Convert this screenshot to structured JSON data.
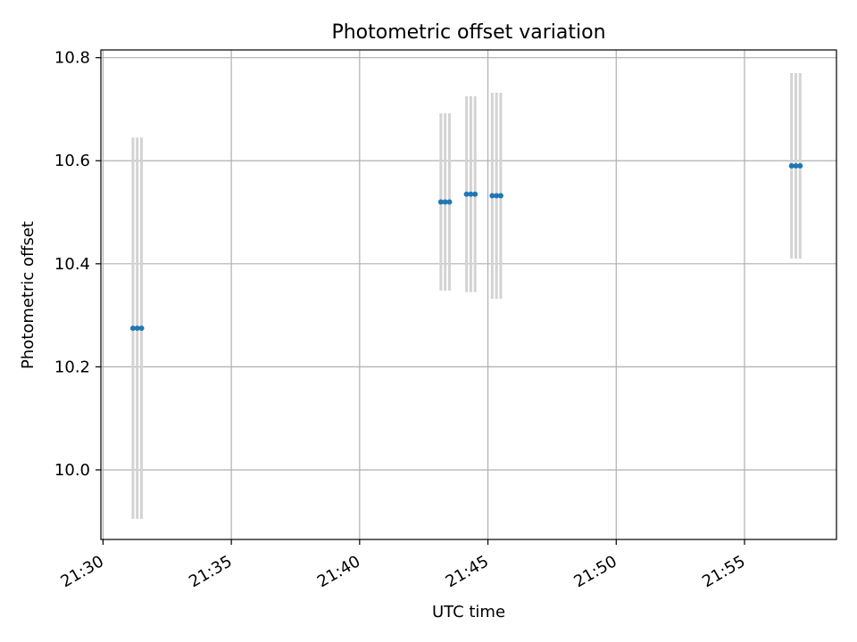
{
  "chart_data": {
    "type": "scatter",
    "title": "Photometric offset variation",
    "xlabel": "UTC time",
    "ylabel": "Photometric offset",
    "x_ticks": [
      "21:30",
      "21:35",
      "21:40",
      "21:45",
      "21:50",
      "21:55"
    ],
    "y_ticks": [
      "10.0",
      "10.2",
      "10.4",
      "10.6",
      "10.8"
    ],
    "xlim": [
      "21:29:55",
      "21:58:35"
    ],
    "ylim": [
      9.865,
      10.815
    ],
    "grid": true,
    "series": [
      {
        "x": [
          "21:31:10",
          "21:31:20",
          "21:31:30",
          "21:43:10",
          "21:43:20",
          "21:43:30",
          "21:44:10",
          "21:44:20",
          "21:44:30",
          "21:45:10",
          "21:45:20",
          "21:45:30",
          "21:56:50",
          "21:57:00",
          "21:57:10"
        ],
        "y": [
          10.275,
          10.275,
          10.275,
          10.52,
          10.52,
          10.52,
          10.535,
          10.535,
          10.535,
          10.532,
          10.532,
          10.532,
          10.59,
          10.59,
          10.59
        ],
        "yerr": [
          0.37,
          0.37,
          0.37,
          0.172,
          0.172,
          0.172,
          0.19,
          0.19,
          0.19,
          0.2,
          0.2,
          0.2,
          0.18,
          0.18,
          0.18
        ]
      }
    ],
    "colors": {
      "marker": "#1f77b4",
      "errorbar": "#d3d3d3",
      "grid": "#b0b0b0"
    }
  }
}
